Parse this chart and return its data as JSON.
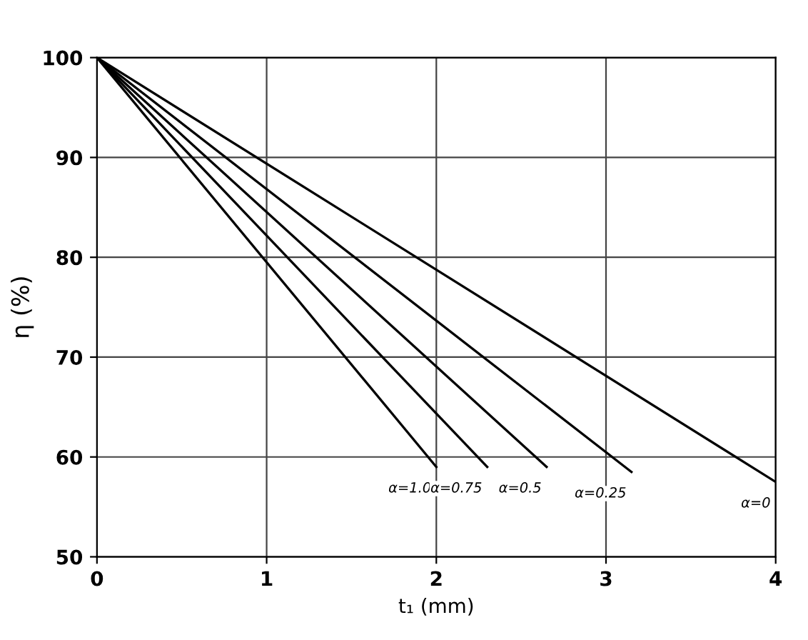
{
  "chart_data": {
    "type": "line",
    "xlabel": "t₁ (mm)",
    "ylabel": "η (%)",
    "series": [
      {
        "name": "α=1.0",
        "color": "#000000",
        "x": [
          0,
          2.0
        ],
        "values": [
          100,
          59
        ]
      },
      {
        "name": "α=0.75",
        "color": "#000000",
        "x": [
          0,
          2.3
        ],
        "values": [
          100,
          59
        ]
      },
      {
        "name": "α=0.5",
        "color": "#000000",
        "x": [
          0,
          2.65
        ],
        "values": [
          100,
          59
        ]
      },
      {
        "name": "α=0.25",
        "color": "#000000",
        "x": [
          0,
          3.15
        ],
        "values": [
          100,
          58.5
        ]
      },
      {
        "name": "α=0",
        "color": "#000000",
        "x": [
          0,
          4.0
        ],
        "values": [
          100,
          57.5
        ]
      }
    ],
    "xlim": [
      0,
      4
    ],
    "ylim": [
      50,
      100
    ],
    "xticks": [
      0,
      1,
      2,
      3,
      4
    ],
    "yticks": [
      50,
      60,
      70,
      80,
      90,
      100
    ],
    "grid": true,
    "legend": false,
    "marker": "none",
    "line_style": "solid"
  }
}
